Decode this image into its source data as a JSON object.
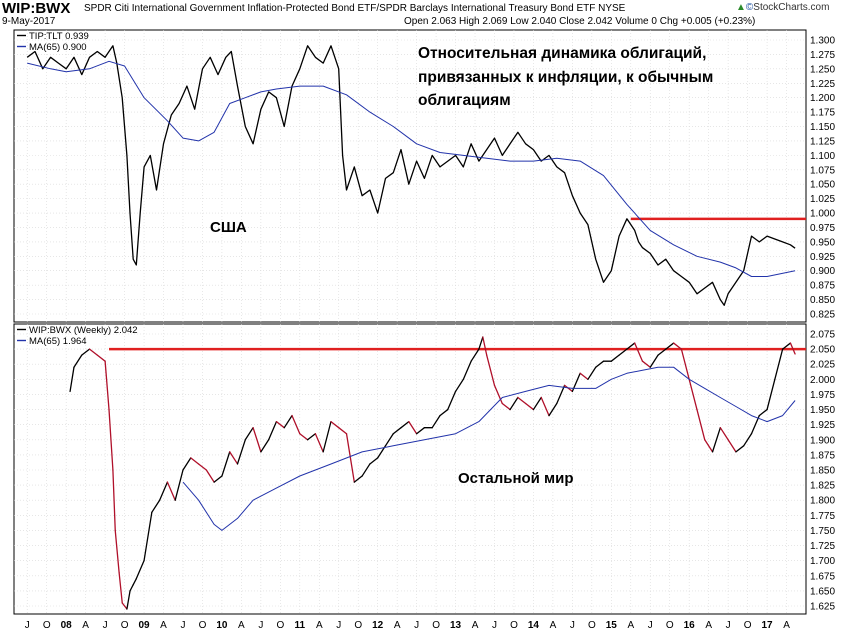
{
  "header": {
    "symbol": "WIP:BWX",
    "description": "SPDR Citi International Government Inflation-Protected Bond ETF/SPDR Barclays International Treasury Bond ETF  NYSE",
    "date": "9-May-2017",
    "quote": "Open 2.063  High 2.069  Low 2.040  Close 2.042  Volume 0  Chg +0.005 (+0.23%)",
    "brand_mark": "©",
    "brand": "StockCharts.com",
    "brand_icon": "up-arrow-icon"
  },
  "chart_data": [
    {
      "type": "line",
      "legend": [
        "TIP:TLT 0.939",
        "MA(65) 0.900"
      ],
      "legend_position": "top-left",
      "annotations": [
        "Относительная динамика облигаций,",
        "привязанных к инфляции, к обычным",
        "облигациям",
        "США"
      ],
      "ylim": [
        0.825,
        1.3
      ],
      "yticks": [
        "1.300",
        "1.275",
        "1.250",
        "1.225",
        "1.200",
        "1.175",
        "1.150",
        "1.125",
        "1.100",
        "1.075",
        "1.050",
        "1.025",
        "1.000",
        "0.975",
        "0.950",
        "0.925",
        "0.900",
        "0.875",
        "0.850",
        "0.825"
      ],
      "grid": true,
      "series": [
        {
          "name": "TIP:TLT",
          "color": "#000000",
          "x": [
            2007.5,
            2007.6,
            2007.7,
            2007.8,
            2007.9,
            2008.0,
            2008.1,
            2008.2,
            2008.3,
            2008.4,
            2008.5,
            2008.6,
            2008.65,
            2008.72,
            2008.78,
            2008.82,
            2008.86,
            2008.9,
            2008.95,
            2009.0,
            2009.08,
            2009.16,
            2009.25,
            2009.35,
            2009.45,
            2009.55,
            2009.65,
            2009.75,
            2009.85,
            2009.95,
            2010.05,
            2010.12,
            2010.2,
            2010.3,
            2010.4,
            2010.5,
            2010.6,
            2010.7,
            2010.8,
            2010.9,
            2011.0,
            2011.1,
            2011.2,
            2011.3,
            2011.4,
            2011.5,
            2011.55,
            2011.6,
            2011.7,
            2011.8,
            2011.9,
            2012.0,
            2012.1,
            2012.2,
            2012.3,
            2012.4,
            2012.5,
            2012.6,
            2012.7,
            2012.8,
            2012.9,
            2013.0,
            2013.1,
            2013.2,
            2013.3,
            2013.4,
            2013.5,
            2013.6,
            2013.7,
            2013.8,
            2013.9,
            2014.0,
            2014.1,
            2014.2,
            2014.3,
            2014.4,
            2014.5,
            2014.6,
            2014.7,
            2014.8,
            2014.9,
            2015.0,
            2015.05,
            2015.1,
            2015.2,
            2015.3,
            2015.35,
            2015.4,
            2015.5,
            2015.6,
            2015.7,
            2015.8,
            2015.9,
            2016.0,
            2016.1,
            2016.2,
            2016.3,
            2016.4,
            2016.45,
            2016.5,
            2016.6,
            2016.7,
            2016.8,
            2016.9,
            2017.0,
            2017.1,
            2017.2,
            2017.3,
            2017.36
          ],
          "values": [
            1.27,
            1.28,
            1.25,
            1.27,
            1.26,
            1.25,
            1.27,
            1.24,
            1.27,
            1.28,
            1.27,
            1.29,
            1.26,
            1.2,
            1.1,
            1.0,
            0.92,
            0.91,
            1.0,
            1.08,
            1.1,
            1.04,
            1.12,
            1.17,
            1.19,
            1.22,
            1.18,
            1.25,
            1.27,
            1.24,
            1.27,
            1.28,
            1.22,
            1.15,
            1.12,
            1.18,
            1.21,
            1.2,
            1.15,
            1.22,
            1.25,
            1.29,
            1.27,
            1.26,
            1.29,
            1.25,
            1.1,
            1.04,
            1.08,
            1.03,
            1.04,
            1.0,
            1.06,
            1.07,
            1.11,
            1.05,
            1.09,
            1.06,
            1.1,
            1.08,
            1.09,
            1.1,
            1.08,
            1.12,
            1.09,
            1.11,
            1.13,
            1.1,
            1.12,
            1.14,
            1.12,
            1.11,
            1.09,
            1.1,
            1.08,
            1.07,
            1.03,
            1.0,
            0.98,
            0.92,
            0.88,
            0.9,
            0.93,
            0.96,
            0.99,
            0.97,
            0.95,
            0.94,
            0.93,
            0.91,
            0.92,
            0.9,
            0.89,
            0.88,
            0.86,
            0.87,
            0.88,
            0.85,
            0.84,
            0.86,
            0.88,
            0.9,
            0.96,
            0.95,
            0.96,
            0.955,
            0.95,
            0.945,
            0.939
          ]
        },
        {
          "name": "MA(65)",
          "color": "#2233aa",
          "x": [
            2007.5,
            2007.8,
            2008.0,
            2008.3,
            2008.55,
            2008.75,
            2009.0,
            2009.3,
            2009.5,
            2009.7,
            2009.9,
            2010.1,
            2010.3,
            2010.5,
            2010.7,
            2011.0,
            2011.3,
            2011.6,
            2011.9,
            2012.2,
            2012.5,
            2012.8,
            2013.1,
            2013.4,
            2013.7,
            2014.0,
            2014.3,
            2014.6,
            2014.9,
            2015.2,
            2015.5,
            2015.8,
            2016.1,
            2016.4,
            2016.6,
            2016.8,
            2017.0,
            2017.36
          ],
          "values": [
            1.26,
            1.25,
            1.245,
            1.25,
            1.263,
            1.255,
            1.2,
            1.16,
            1.13,
            1.125,
            1.14,
            1.19,
            1.2,
            1.21,
            1.215,
            1.22,
            1.22,
            1.205,
            1.175,
            1.15,
            1.12,
            1.105,
            1.1,
            1.095,
            1.09,
            1.09,
            1.095,
            1.09,
            1.065,
            1.015,
            0.97,
            0.945,
            0.925,
            0.915,
            0.905,
            0.89,
            0.89,
            0.9
          ]
        }
      ],
      "resistance_line": {
        "value": 0.99,
        "x_start": 2015.25,
        "color": "#e02020"
      }
    },
    {
      "type": "line",
      "legend": [
        "WIP:BWX (Weekly) 2.042",
        "MA(65) 1.964"
      ],
      "legend_position": "top-left",
      "annotations": [
        "Остальной мир"
      ],
      "ylim": [
        1.625,
        2.075
      ],
      "yticks": [
        "2.075",
        "2.050",
        "2.025",
        "2.000",
        "1.975",
        "1.950",
        "1.925",
        "1.900",
        "1.875",
        "1.850",
        "1.825",
        "1.800",
        "1.775",
        "1.750",
        "1.725",
        "1.700",
        "1.675",
        "1.650",
        "1.625"
      ],
      "grid": true,
      "xticks": [
        "J",
        "O",
        "08",
        "A",
        "J",
        "O",
        "09",
        "A",
        "J",
        "O",
        "10",
        "A",
        "J",
        "O",
        "11",
        "A",
        "J",
        "O",
        "12",
        "A",
        "J",
        "O",
        "13",
        "A",
        "J",
        "O",
        "14",
        "A",
        "J",
        "O",
        "15",
        "A",
        "J",
        "O",
        "16",
        "A",
        "J",
        "O",
        "17",
        "A"
      ],
      "series": [
        {
          "name": "WIP:BWX",
          "color": "#000000",
          "color_falling": "#b0102a",
          "x": [
            2008.05,
            2008.1,
            2008.2,
            2008.3,
            2008.4,
            2008.5,
            2008.55,
            2008.6,
            2008.63,
            2008.68,
            2008.72,
            2008.78,
            2008.82,
            2008.86,
            2008.9,
            2009.0,
            2009.1,
            2009.2,
            2009.3,
            2009.4,
            2009.5,
            2009.6,
            2009.7,
            2009.8,
            2009.9,
            2010.0,
            2010.1,
            2010.2,
            2010.3,
            2010.4,
            2010.5,
            2010.6,
            2010.7,
            2010.8,
            2010.9,
            2011.0,
            2011.1,
            2011.2,
            2011.3,
            2011.4,
            2011.5,
            2011.6,
            2011.7,
            2011.8,
            2011.9,
            2012.0,
            2012.1,
            2012.2,
            2012.3,
            2012.4,
            2012.5,
            2012.6,
            2012.7,
            2012.8,
            2012.9,
            2013.0,
            2013.1,
            2013.2,
            2013.3,
            2013.35,
            2013.4,
            2013.5,
            2013.6,
            2013.7,
            2013.8,
            2013.9,
            2014.0,
            2014.1,
            2014.2,
            2014.3,
            2014.4,
            2014.5,
            2014.6,
            2014.7,
            2014.8,
            2014.9,
            2015.0,
            2015.1,
            2015.2,
            2015.3,
            2015.4,
            2015.5,
            2015.6,
            2015.7,
            2015.8,
            2015.9,
            2016.0,
            2016.1,
            2016.2,
            2016.3,
            2016.4,
            2016.5,
            2016.6,
            2016.7,
            2016.8,
            2016.9,
            2017.0,
            2017.1,
            2017.2,
            2017.3,
            2017.36
          ],
          "values": [
            1.98,
            2.02,
            2.04,
            2.05,
            2.04,
            2.03,
            1.95,
            1.85,
            1.75,
            1.68,
            1.63,
            1.62,
            1.65,
            1.66,
            1.67,
            1.7,
            1.78,
            1.8,
            1.83,
            1.8,
            1.85,
            1.87,
            1.86,
            1.85,
            1.83,
            1.84,
            1.88,
            1.86,
            1.9,
            1.92,
            1.88,
            1.9,
            1.93,
            1.92,
            1.94,
            1.91,
            1.9,
            1.91,
            1.88,
            1.93,
            1.92,
            1.91,
            1.83,
            1.84,
            1.86,
            1.87,
            1.89,
            1.91,
            1.92,
            1.93,
            1.91,
            1.92,
            1.92,
            1.94,
            1.95,
            1.98,
            2.0,
            2.03,
            2.05,
            2.07,
            2.04,
            1.99,
            1.96,
            1.95,
            1.97,
            1.96,
            1.95,
            1.97,
            1.94,
            1.96,
            1.99,
            1.98,
            2.01,
            2.0,
            2.02,
            2.03,
            2.03,
            2.04,
            2.05,
            2.06,
            2.03,
            2.02,
            2.04,
            2.05,
            2.06,
            2.05,
            2.0,
            1.95,
            1.9,
            1.88,
            1.92,
            1.9,
            1.88,
            1.89,
            1.91,
            1.94,
            1.95,
            2.0,
            2.05,
            2.06,
            2.042
          ]
        },
        {
          "name": "MA(65)",
          "color": "#2233aa",
          "x": [
            2009.5,
            2009.7,
            2009.9,
            2010.0,
            2010.2,
            2010.4,
            2010.7,
            2011.0,
            2011.4,
            2011.8,
            2012.2,
            2012.6,
            2013.0,
            2013.3,
            2013.6,
            2013.9,
            2014.2,
            2014.5,
            2014.8,
            2015.0,
            2015.2,
            2015.4,
            2015.6,
            2015.8,
            2016.0,
            2016.2,
            2016.4,
            2016.6,
            2016.8,
            2017.0,
            2017.2,
            2017.36
          ],
          "values": [
            1.83,
            1.8,
            1.76,
            1.75,
            1.77,
            1.8,
            1.82,
            1.84,
            1.86,
            1.88,
            1.89,
            1.9,
            1.91,
            1.93,
            1.97,
            1.98,
            1.99,
            1.985,
            1.985,
            2.0,
            2.01,
            2.015,
            2.02,
            2.02,
            2.0,
            1.985,
            1.97,
            1.955,
            1.94,
            1.93,
            1.94,
            1.965
          ]
        }
      ],
      "resistance_line": {
        "value": 2.05,
        "x_start": 2008.55,
        "color": "#e02020"
      }
    }
  ]
}
